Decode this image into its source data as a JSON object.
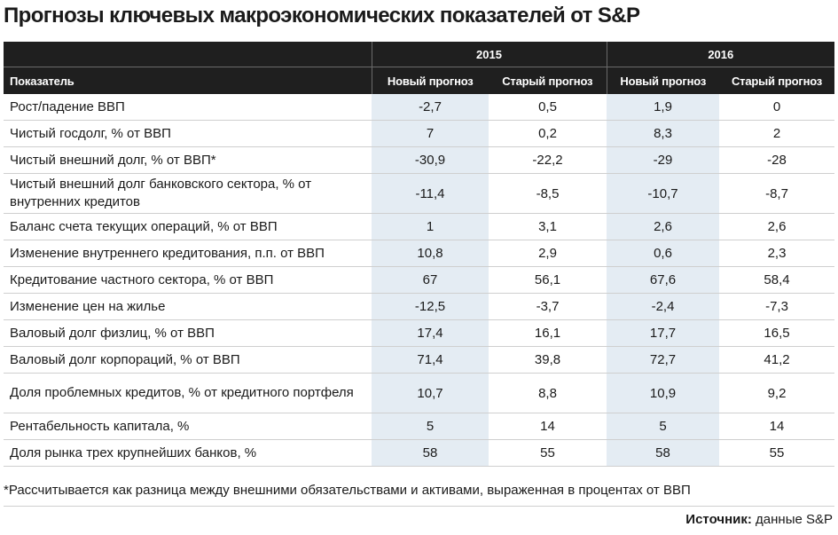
{
  "title": "Прогнозы ключевых макроэкономических показателей от S&P",
  "headers": {
    "indicator": "Показатель",
    "years": [
      "2015",
      "2016"
    ],
    "new_forecast": "Новый прогноз",
    "old_forecast": "Старый прогноз"
  },
  "rows": [
    {
      "label": "Рост/падение ВВП",
      "v": [
        "-2,7",
        "0,5",
        "1,9",
        "0"
      ]
    },
    {
      "label": "Чистый госдолг, % от ВВП",
      "v": [
        "7",
        "0,2",
        "8,3",
        "2"
      ]
    },
    {
      "label": "Чистый внешний долг, % от ВВП*",
      "v": [
        "-30,9",
        "-22,2",
        "-29",
        "-28"
      ]
    },
    {
      "label": "Чистый внешний долг банковского сектора, % от внутренних кредитов",
      "v": [
        "-11,4",
        "-8,5",
        "-10,7",
        "-8,7"
      ]
    },
    {
      "label": "Баланс счета текущих операций, % от ВВП",
      "v": [
        "1",
        "3,1",
        "2,6",
        "2,6"
      ]
    },
    {
      "label": "Изменение внутреннего кредитования, п.п. от ВВП",
      "v": [
        "10,8",
        "2,9",
        "0,6",
        "2,3"
      ]
    },
    {
      "label": "Кредитование частного сектора, % от ВВП",
      "v": [
        "67",
        "56,1",
        "67,6",
        "58,4"
      ]
    },
    {
      "label": "Изменение цен на жилье",
      "v": [
        "-12,5",
        "-3,7",
        "-2,4",
        "-7,3"
      ]
    },
    {
      "label": "Валовый долг физлиц, % от ВВП",
      "v": [
        "17,4",
        "16,1",
        "17,7",
        "16,5"
      ]
    },
    {
      "label": "Валовый долг корпораций, % от ВВП",
      "v": [
        "71,4",
        "39,8",
        "72,7",
        "41,2"
      ]
    },
    {
      "label": "Доля проблемных кредитов, % от кредитного портфеля",
      "v": [
        "10,7",
        "8,8",
        "10,9",
        "9,2"
      ]
    },
    {
      "label": "Рентабельность капитала, %",
      "v": [
        "5",
        "14",
        "5",
        "14"
      ]
    },
    {
      "label": "Доля рынка трех крупнейших банков, %",
      "v": [
        "58",
        "55",
        "58",
        "55"
      ]
    }
  ],
  "footnote": "*Рассчитывается как разница между внешними обязательствами и активами, выраженная в процентах от ВВП",
  "source_label": "Источник:",
  "source_text": "данные S&P",
  "highlight_color": "#e4ecf3",
  "header_color": "#1f1f1f",
  "chart_data": {
    "type": "table",
    "title": "Прогнозы ключевых макроэкономических показателей от S&P",
    "columns": [
      "Показатель",
      "2015 Новый прогноз",
      "2015 Старый прогноз",
      "2016 Новый прогноз",
      "2016 Старый прогноз"
    ],
    "values": [
      [
        "Рост/падение ВВП",
        -2.7,
        0.5,
        1.9,
        0
      ],
      [
        "Чистый госдолг, % от ВВП",
        7,
        0.2,
        8.3,
        2
      ],
      [
        "Чистый внешний долг, % от ВВП*",
        -30.9,
        -22.2,
        -29,
        -28
      ],
      [
        "Чистый внешний долг банковского сектора, % от внутренних кредитов",
        -11.4,
        -8.5,
        -10.7,
        -8.7
      ],
      [
        "Баланс счета текущих операций, % от ВВП",
        1,
        3.1,
        2.6,
        2.6
      ],
      [
        "Изменение внутреннего кредитования, п.п. от ВВП",
        10.8,
        2.9,
        0.6,
        2.3
      ],
      [
        "Кредитование частного сектора, % от ВВП",
        67,
        56.1,
        67.6,
        58.4
      ],
      [
        "Изменение цен на жилье",
        -12.5,
        -3.7,
        -2.4,
        -7.3
      ],
      [
        "Валовый долг физлиц, % от ВВП",
        17.4,
        16.1,
        17.7,
        16.5
      ],
      [
        "Валовый долг корпораций, % от ВВП",
        71.4,
        39.8,
        72.7,
        41.2
      ],
      [
        "Доля проблемных кредитов, % от кредитного портфеля",
        10.7,
        8.8,
        10.9,
        9.2
      ],
      [
        "Рентабельность капитала, %",
        5,
        14,
        5,
        14
      ],
      [
        "Доля рынка трех крупнейших банков, %",
        58,
        55,
        58,
        55
      ]
    ]
  }
}
